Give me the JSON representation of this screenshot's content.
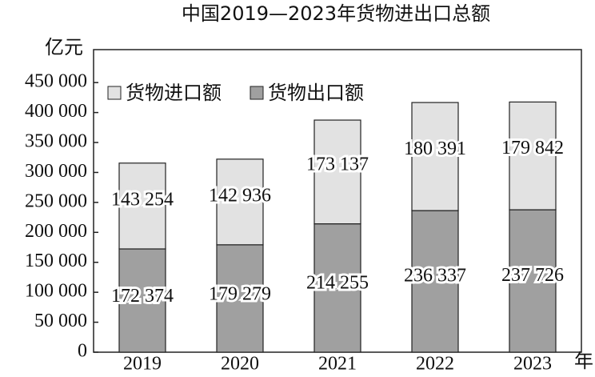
{
  "chart_data": {
    "type": "stacked_bar",
    "title": "中国2019—2023年货物进出口总额",
    "y_label": "亿元",
    "x_label": "年",
    "categories": [
      "2019",
      "2020",
      "2021",
      "2022",
      "2023"
    ],
    "series": [
      {
        "name": "货物出口额",
        "color": "#a0a0a0",
        "values": [
          172374,
          179279,
          214255,
          236337,
          237726
        ],
        "value_labels": [
          "172 374",
          "179 279",
          "214 255",
          "236 337",
          "237 726"
        ]
      },
      {
        "name": "货物进口额",
        "color": "#e2e2e2",
        "values": [
          143254,
          142936,
          173137,
          180391,
          179842
        ],
        "value_labels": [
          "143 254",
          "142 936",
          "173 137",
          "180 391",
          "179 842"
        ]
      }
    ],
    "ylim": [
      0,
      505000
    ],
    "yticks": [
      0,
      {
        "value": 50000,
        "label": "50 000"
      },
      {
        "value": 100000,
        "label": "100 000"
      },
      {
        "value": 150000,
        "label": "150 000"
      },
      {
        "value": 200000,
        "label": "200 000"
      },
      {
        "value": 250000,
        "label": "250 000"
      },
      {
        "value": 300000,
        "label": "300 000"
      },
      {
        "value": 350000,
        "label": "350 000"
      },
      {
        "value": 400000,
        "label": "400 000"
      },
      {
        "value": 450000,
        "label": "450 000"
      }
    ],
    "legend": "upper left",
    "legend_order": [
      1,
      0
    ],
    "grid": false
  }
}
